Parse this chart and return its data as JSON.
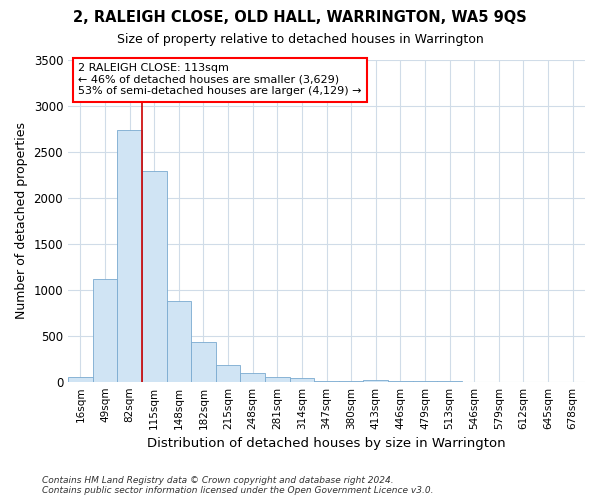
{
  "title": "2, RALEIGH CLOSE, OLD HALL, WARRINGTON, WA5 9QS",
  "subtitle": "Size of property relative to detached houses in Warrington",
  "xlabel": "Distribution of detached houses by size in Warrington",
  "ylabel": "Number of detached properties",
  "bar_color": "#d0e4f4",
  "bar_edge_color": "#7aaad0",
  "vline_color": "#cc0000",
  "categories": [
    "16sqm",
    "49sqm",
    "82sqm",
    "115sqm",
    "148sqm",
    "182sqm",
    "215sqm",
    "248sqm",
    "281sqm",
    "314sqm",
    "347sqm",
    "380sqm",
    "413sqm",
    "446sqm",
    "479sqm",
    "513sqm",
    "546sqm",
    "579sqm",
    "612sqm",
    "645sqm",
    "678sqm"
  ],
  "values": [
    50,
    1120,
    2740,
    2290,
    880,
    430,
    185,
    95,
    55,
    35,
    5,
    5,
    20,
    5,
    3,
    2,
    1,
    1,
    0,
    0,
    0
  ],
  "ylim": [
    0,
    3500
  ],
  "yticks": [
    0,
    500,
    1000,
    1500,
    2000,
    2500,
    3000,
    3500
  ],
  "annotation_title": "2 RALEIGH CLOSE: 113sqm",
  "annotation_line1": "← 46% of detached houses are smaller (3,629)",
  "annotation_line2": "53% of semi-detached houses are larger (4,129) →",
  "footnote1": "Contains HM Land Registry data © Crown copyright and database right 2024.",
  "footnote2": "Contains public sector information licensed under the Open Government Licence v3.0.",
  "bg_color": "#ffffff",
  "plot_bg_color": "#ffffff",
  "grid_color": "#d0dce8"
}
